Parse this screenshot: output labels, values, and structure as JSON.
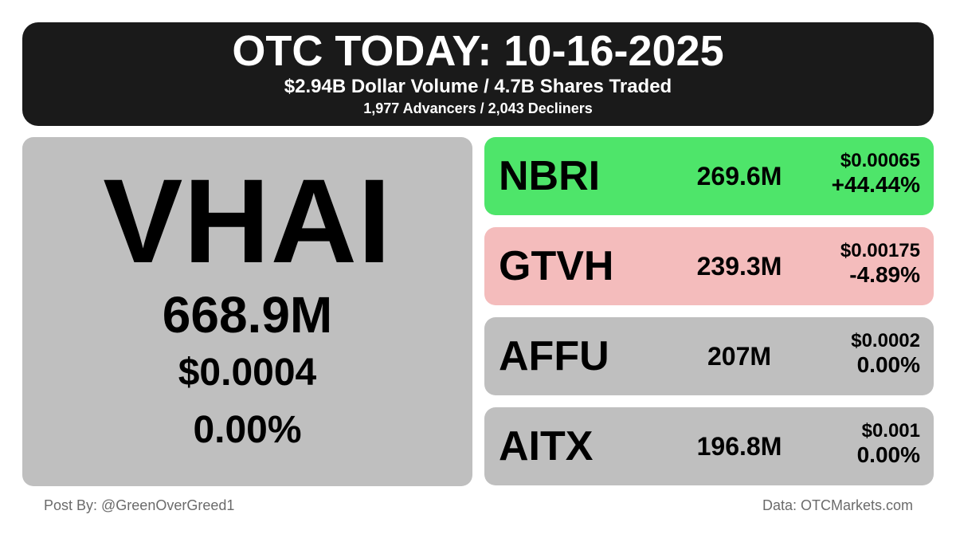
{
  "header": {
    "title": "OTC TODAY: 10-16-2025",
    "volume_line": "$2.94B Dollar Volume / 4.7B Shares Traded",
    "breadth_line": "1,977 Advancers / 2,043 Decliners"
  },
  "featured": {
    "ticker": "VHAI",
    "volume": "668.9M",
    "price": "$0.0004",
    "change": "0.00%",
    "color": "#bfbfbf"
  },
  "rows": [
    {
      "ticker": "NBRI",
      "volume": "269.6M",
      "price": "$0.00065",
      "change": "+44.44%",
      "color": "#4ee56a"
    },
    {
      "ticker": "GTVH",
      "volume": "239.3M",
      "price": "$0.00175",
      "change": "-4.89%",
      "color": "#f4bcbc"
    },
    {
      "ticker": "AFFU",
      "volume": "207M",
      "price": "$0.0002",
      "change": "0.00%",
      "color": "#bfbfbf"
    },
    {
      "ticker": "AITX",
      "volume": "196.8M",
      "price": "$0.001",
      "change": "0.00%",
      "color": "#bfbfbf"
    }
  ],
  "footer": {
    "post_by": "Post By: @GreenOverGreed1",
    "data_source": "Data: OTCMarkets.com"
  },
  "colors": {
    "header_bg": "#1a1a1a",
    "gain": "#4ee56a",
    "loss": "#f4bcbc",
    "neutral": "#bfbfbf"
  }
}
